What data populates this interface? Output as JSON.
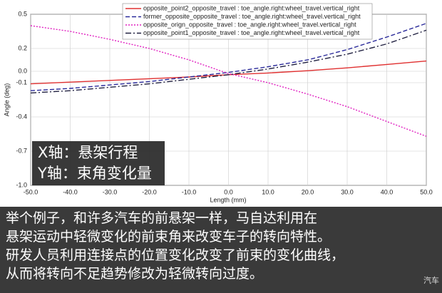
{
  "chart_data": {
    "type": "line",
    "x_label": "Length (mm)",
    "y_label": "Angle (deg)",
    "x": [
      -50,
      -40,
      -30,
      -20,
      -10,
      0,
      10,
      20,
      30,
      40,
      50
    ],
    "series": [
      {
        "name": "opposite_point2_opposite_travel : toe_angle.right:wheel_travel.vertical_right",
        "color": "#e03030",
        "style": "solid",
        "values": [
          -0.11,
          -0.095,
          -0.08,
          -0.065,
          -0.05,
          -0.03,
          -0.015,
          0.005,
          0.03,
          0.06,
          0.09
        ]
      },
      {
        "name": "former_opposite_opposite_travel : toe_angle.right:wheel_travel.vertical_right",
        "color": "#2a2a9a",
        "style": "dashed",
        "values": [
          -0.17,
          -0.15,
          -0.12,
          -0.09,
          -0.05,
          -0.01,
          0.04,
          0.1,
          0.19,
          0.3,
          0.42
        ]
      },
      {
        "name": "opposite_orign_opposite_travel : toe_angle.right:wheel_travel.vertical_right",
        "color": "#e020c0",
        "style": "dotted",
        "values": [
          0.4,
          0.35,
          0.28,
          0.2,
          0.1,
          -0.02,
          -0.1,
          -0.2,
          -0.31,
          -0.44,
          -0.57
        ]
      },
      {
        "name": "opposite_point1_opposite_travel : toe_angle.right:wheel_travel.vertical_right",
        "color": "#202040",
        "style": "dashdot",
        "values": [
          -0.19,
          -0.17,
          -0.14,
          -0.11,
          -0.07,
          -0.03,
          0.02,
          0.08,
          0.15,
          0.24,
          0.36
        ]
      }
    ],
    "xlim": [
      -50,
      50
    ],
    "xticks": [
      {
        "value": -50,
        "label": "-50.0"
      },
      {
        "value": -40,
        "label": "-40.0"
      },
      {
        "value": -30,
        "label": "-30.0"
      },
      {
        "value": -20,
        "label": "-20.0"
      },
      {
        "value": -10,
        "label": "-10.0"
      },
      {
        "value": 0,
        "label": "0.0"
      },
      {
        "value": 10,
        "label": "10.0"
      },
      {
        "value": 20,
        "label": "20.0"
      },
      {
        "value": 30,
        "label": "30.0"
      },
      {
        "value": 40,
        "label": "40.0"
      },
      {
        "value": 50,
        "label": "50.0"
      }
    ],
    "ylim": [
      -1.0,
      0.5
    ],
    "yticks": [
      0.5,
      0.2,
      {
        "value": 0,
        "label": "0.0"
      },
      -0.1,
      -0.4,
      -0.7,
      {
        "value": -1.0,
        "label": "-1.0"
      }
    ],
    "grid": true,
    "annotations": [
      "X轴：悬架行程",
      "Y轴：束角变化量"
    ]
  },
  "caption": {
    "lines": [
      "举个例子，和许多汽车的前悬架一样，马自达利用在",
      "悬架运动中轻微变化的前束角来改变车子的转向特性。",
      "研发人员利用连接点的位置变化改变了前束的变化曲线，",
      "从而将转向不足趋势修改为轻微转向过度。"
    ],
    "watermark": "汽车"
  }
}
